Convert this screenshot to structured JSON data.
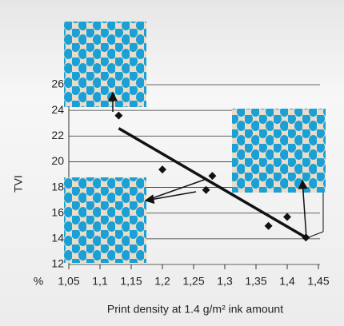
{
  "chart_data": {
    "type": "scatter",
    "x_label": "Print density at 1.4 g/m² ink amount",
    "y_label": "TVI",
    "unit_label": "%",
    "x": [
      1.13,
      1.2,
      1.27,
      1.28,
      1.37,
      1.4,
      1.43
    ],
    "values": [
      23.6,
      19.4,
      17.8,
      18.9,
      15.0,
      15.7,
      14.1
    ],
    "color": "#111111",
    "trendline": {
      "x": [
        1.13,
        1.43
      ],
      "y": [
        22.6,
        14.1
      ]
    },
    "xlim": [
      1.05,
      1.45
    ],
    "xticks": [
      {
        "value": 1.05,
        "label": "1,05"
      },
      {
        "value": 1.1,
        "label": "1,1"
      },
      {
        "value": 1.15,
        "label": "1,15"
      },
      {
        "value": 1.2,
        "label": "1,2"
      },
      {
        "value": 1.25,
        "label": "1,25"
      },
      {
        "value": 1.3,
        "label": "1,3"
      },
      {
        "value": 1.35,
        "label": "1,35"
      },
      {
        "value": 1.4,
        "label": "1,4"
      },
      {
        "value": 1.45,
        "label": "1,45"
      }
    ],
    "ylim": [
      12,
      26
    ],
    "yticks": [
      12,
      14,
      16,
      18,
      20,
      22,
      24,
      26
    ],
    "grid": true
  }
}
